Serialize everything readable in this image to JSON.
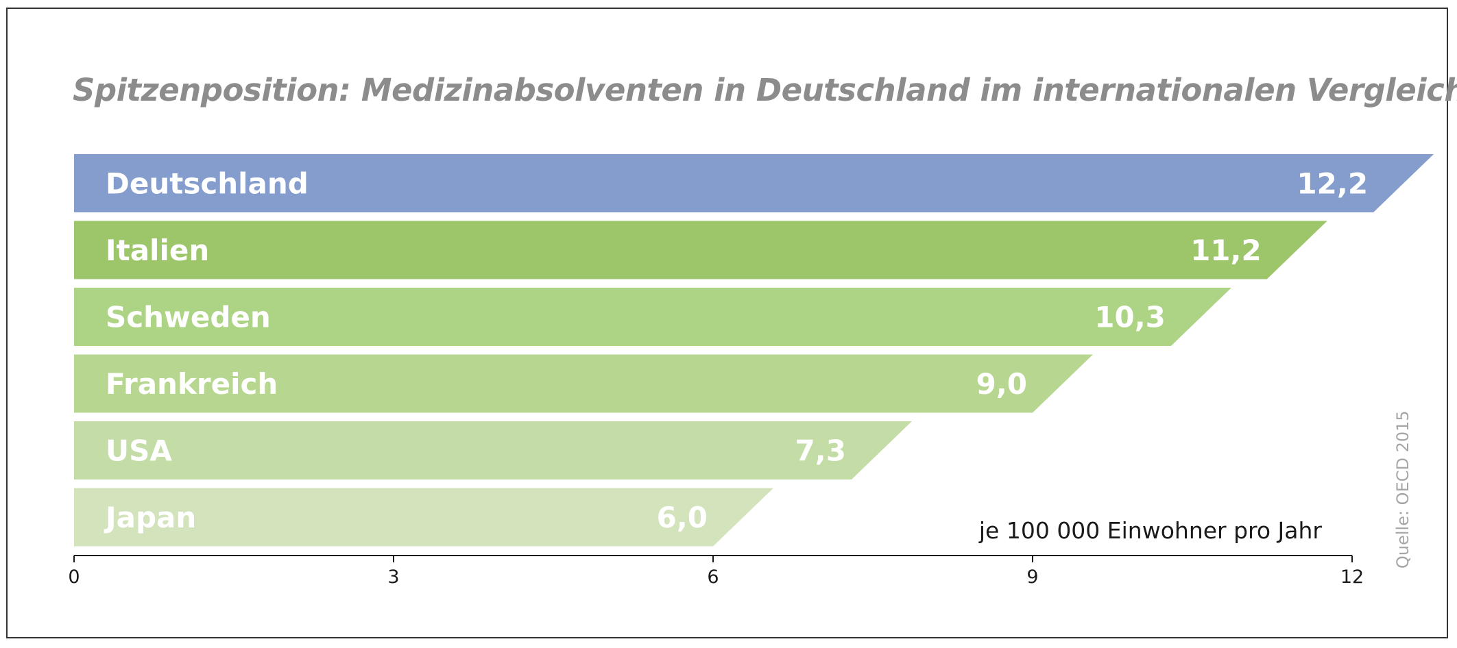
{
  "chart_data": {
    "type": "bar",
    "orientation": "horizontal",
    "title": "Spitzenposition: Medizinabsolventen in Deutschland im internationalen Vergleich",
    "categories": [
      "Deutschland",
      "Italien",
      "Schweden",
      "Frankreich",
      "USA",
      "Japan"
    ],
    "values": [
      12.2,
      11.2,
      10.3,
      9.0,
      7.3,
      6.0
    ],
    "value_labels": [
      "12,2",
      "11,2",
      "10,3",
      "9,0",
      "7,3",
      "6,0"
    ],
    "colors": [
      "#859dcc",
      "#9dc66b",
      "#add384",
      "#b7d68f",
      "#c4dca6",
      "#d3e3bb"
    ],
    "unit_label": "je 100 000 Einwohner pro Jahr",
    "xlim": [
      0,
      12
    ],
    "xticks": [
      0,
      3,
      6,
      9,
      12
    ],
    "source": "Quelle: OECD 2015",
    "grid": false
  }
}
